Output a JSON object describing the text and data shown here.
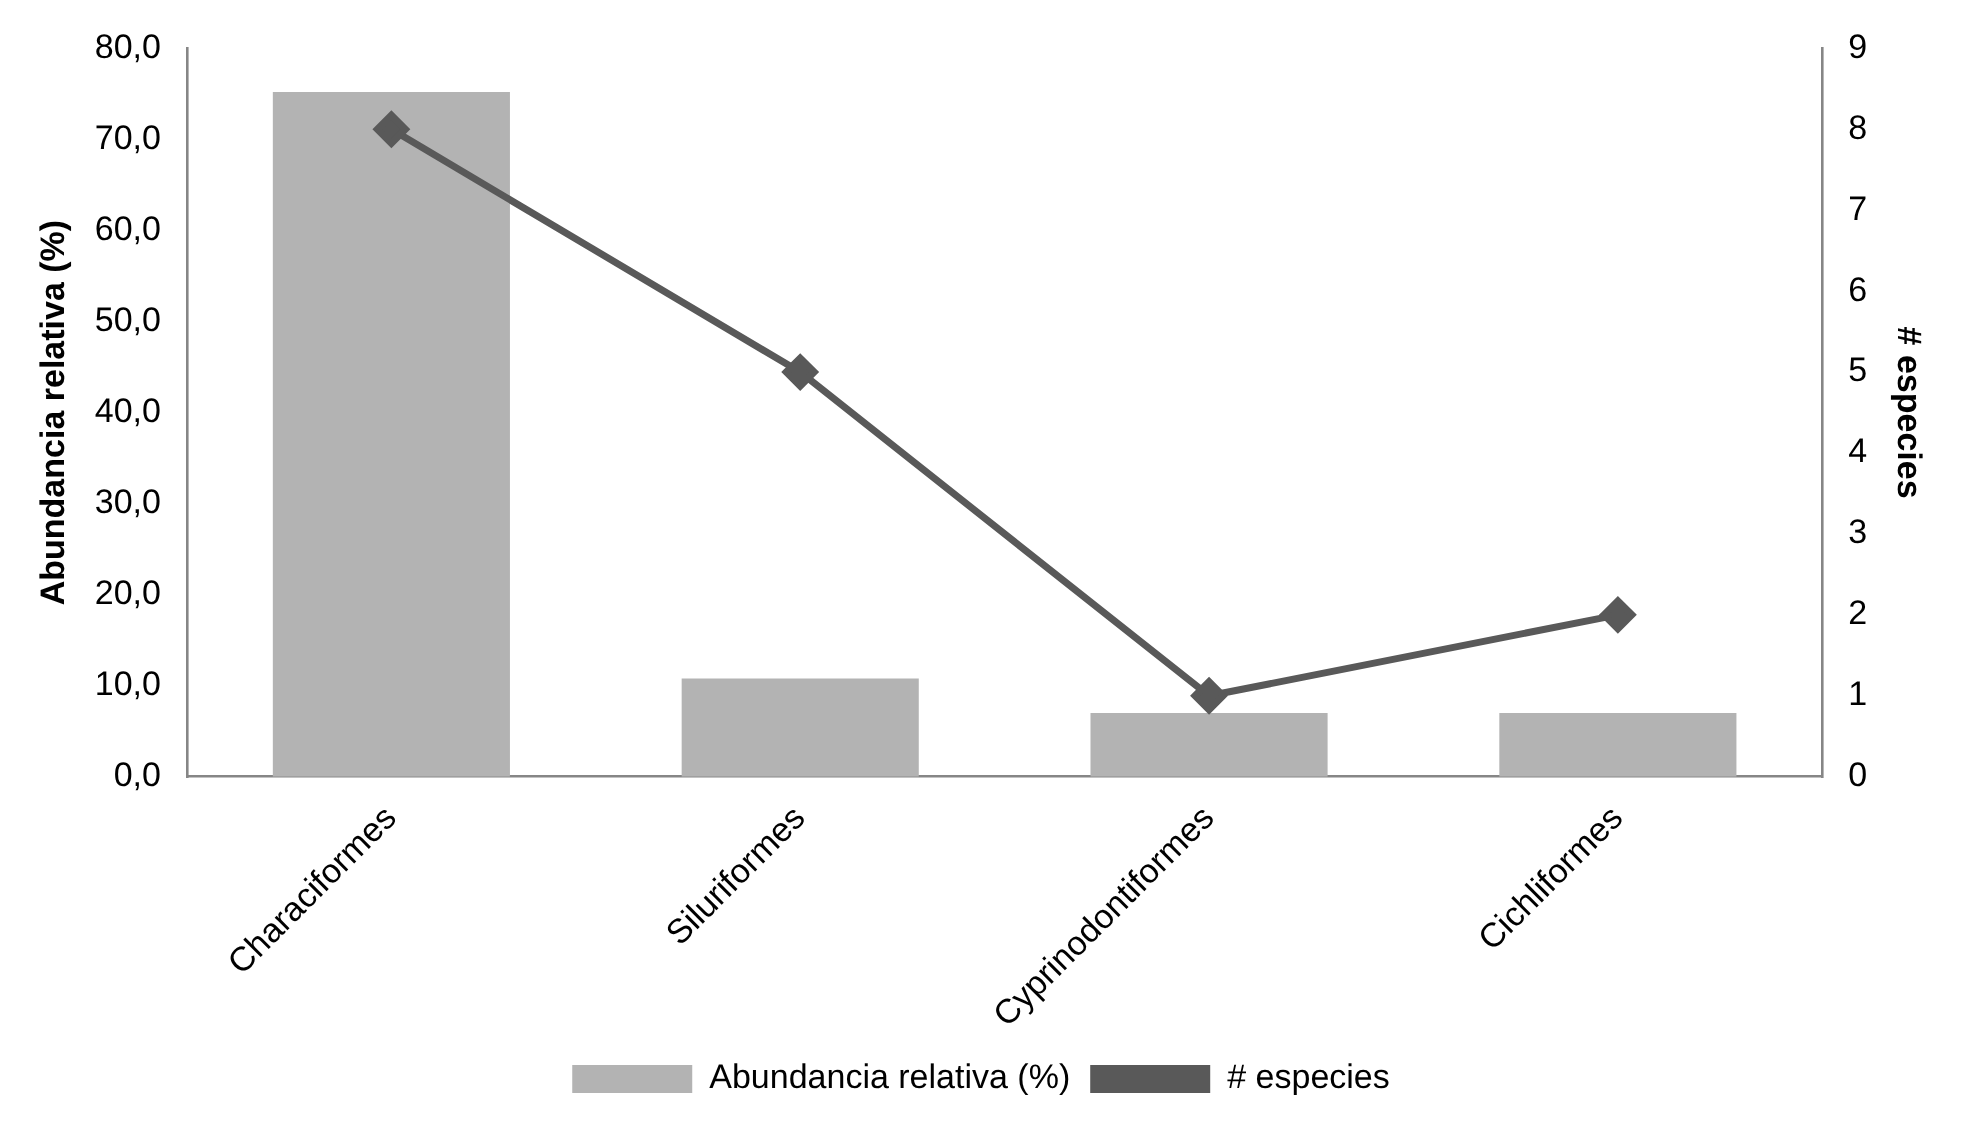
{
  "chart_data": {
    "type": "bar",
    "categories": [
      "Characiformes",
      "Siluriformes",
      "Cyprinodontiformes",
      "Cichliformes"
    ],
    "ylabel": "Abundancia relativa (%)",
    "y2label": "# especies",
    "series": [
      {
        "name": "Abundancia relativa (%)",
        "color": "#b3b3b3",
        "values": [
          75.2,
          10.8,
          7.0,
          7.0
        ]
      },
      {
        "name": "# especies",
        "type": "line",
        "axis": "y2",
        "color": "#595959",
        "marker": "diamond",
        "values": [
          8,
          5,
          1,
          2
        ]
      }
    ],
    "ylim": [
      0,
      80
    ],
    "yticks": [
      {
        "value": 0,
        "label": "0,0"
      },
      {
        "value": 10,
        "label": "10,0"
      },
      {
        "value": 20,
        "label": "20,0"
      },
      {
        "value": 30,
        "label": "30,0"
      },
      {
        "value": 40,
        "label": "40,0"
      },
      {
        "value": 50,
        "label": "50,0"
      },
      {
        "value": 60,
        "label": "60,0"
      },
      {
        "value": 70,
        "label": "70,0"
      },
      {
        "value": 80,
        "label": "80,0"
      }
    ],
    "y2lim": [
      0,
      9
    ],
    "y2ticks": [
      0,
      1,
      2,
      3,
      4,
      5,
      6,
      7,
      8,
      9
    ],
    "grid": false,
    "legend": "bottom"
  }
}
